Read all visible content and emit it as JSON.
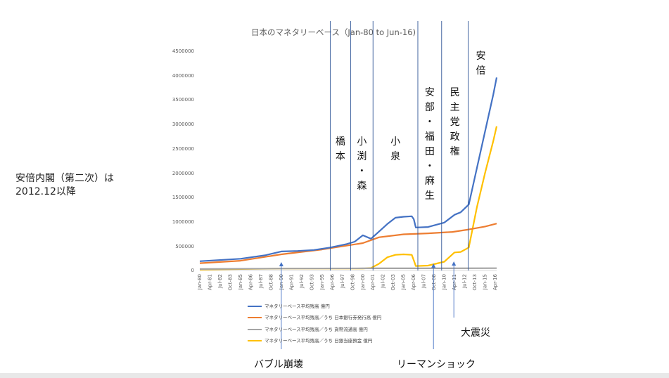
{
  "chart_data": {
    "type": "line",
    "title": "日本のマネタリーベース（Jan-80 to Jun-16)",
    "xlabel": "",
    "ylabel": "",
    "ylim": [
      0,
      4500000
    ],
    "y_ticks": [
      "0",
      "500000",
      "1000000",
      "1500000",
      "2000000",
      "2500000",
      "3000000",
      "3500000",
      "4000000",
      "4500000"
    ],
    "x_start_year": 1980,
    "x_end": [
      2016,
      6
    ],
    "x_tick_labels": [
      "Jan-80",
      "Apr-81",
      "Jul-82",
      "Oct-83",
      "Jan-85",
      "Apr-86",
      "Jul-87",
      "Oct-88",
      "Jan-90",
      "Apr-91",
      "Jul-92",
      "Oct-93",
      "Jan-95",
      "Apr-96",
      "Jul-97",
      "Oct-98",
      "Jan-00",
      "Apr-01",
      "Jul-02",
      "Oct-03",
      "Jan-05",
      "Apr-06",
      "Jul-07",
      "Oct-08",
      "Jan-10",
      "Apr-11",
      "Jul-12",
      "Oct-13",
      "Jan-15",
      "Apr-16"
    ],
    "grid": false,
    "legend_position": "bottom",
    "series": [
      {
        "name": "マネタリーベース平均残高 億円",
        "color": "#4472c4",
        "points": [
          [
            "Jan-80",
            190000
          ],
          [
            "Jan-85",
            240000
          ],
          [
            "Jan-88",
            310000
          ],
          [
            "Jan-90",
            390000
          ],
          [
            "Jan-92",
            400000
          ],
          [
            "Jan-94",
            420000
          ],
          [
            "Jan-96",
            470000
          ],
          [
            "Jan-98",
            540000
          ],
          [
            "Jan-99",
            590000
          ],
          [
            "Jan-00",
            720000
          ],
          [
            "Jan-01",
            650000
          ],
          [
            "Jan-02",
            800000
          ],
          [
            "Jan-03",
            950000
          ],
          [
            "Jan-04",
            1080000
          ],
          [
            "Jan-05",
            1100000
          ],
          [
            "Jan-06",
            1110000
          ],
          [
            "Apr-06",
            1050000
          ],
          [
            "Jul-06",
            880000
          ],
          [
            "Jan-08",
            890000
          ],
          [
            "Jan-10",
            980000
          ],
          [
            "Apr-11",
            1140000
          ],
          [
            "Jan-12",
            1190000
          ],
          [
            "Jan-13",
            1350000
          ],
          [
            "Jan-14",
            2100000
          ],
          [
            "Jan-15",
            2850000
          ],
          [
            "Jan-16",
            3600000
          ],
          [
            "Jun-16",
            3950000
          ]
        ]
      },
      {
        "name": "マネタリーベース平均残高／うち 日本銀行券発行高 億円",
        "color": "#ed7d31",
        "points": [
          [
            "Jan-80",
            150000
          ],
          [
            "Jan-85",
            200000
          ],
          [
            "Jan-90",
            330000
          ],
          [
            "Jan-95",
            430000
          ],
          [
            "Jan-00",
            560000
          ],
          [
            "Jan-02",
            680000
          ],
          [
            "Jan-05",
            740000
          ],
          [
            "Jan-08",
            760000
          ],
          [
            "Jan-11",
            790000
          ],
          [
            "Jan-13",
            840000
          ],
          [
            "Jan-15",
            900000
          ],
          [
            "Jun-16",
            960000
          ]
        ]
      },
      {
        "name": "マネタリーベース平均残高／うち 貨幣流通高 億円",
        "color": "#a5a5a5",
        "points": [
          [
            "Jan-80",
            30000
          ],
          [
            "Jan-90",
            40000
          ],
          [
            "Jan-00",
            45000
          ],
          [
            "Jan-10",
            45000
          ],
          [
            "Jun-16",
            48000
          ]
        ]
      },
      {
        "name": "マネタリーベース平均残高／うち 日銀当座預金 億円",
        "color": "#ffc000",
        "points": [
          [
            "Jan-80",
            20000
          ],
          [
            "Jan-90",
            40000
          ],
          [
            "Jan-00",
            40000
          ],
          [
            "Jan-01",
            50000
          ],
          [
            "Jan-02",
            140000
          ],
          [
            "Jan-03",
            270000
          ],
          [
            "Jan-04",
            320000
          ],
          [
            "Jan-05",
            330000
          ],
          [
            "Jan-06",
            320000
          ],
          [
            "Apr-06",
            210000
          ],
          [
            "Jul-06",
            90000
          ],
          [
            "Jan-08",
            100000
          ],
          [
            "Jan-10",
            180000
          ],
          [
            "Apr-11",
            370000
          ],
          [
            "Jan-12",
            380000
          ],
          [
            "Jan-13",
            470000
          ],
          [
            "Jan-14",
            1300000
          ],
          [
            "Jan-15",
            2000000
          ],
          [
            "Jan-16",
            2650000
          ],
          [
            "Jun-16",
            2950000
          ]
        ]
      }
    ],
    "era_lines": [
      {
        "date": "Jan-96",
        "label": "橋本"
      },
      {
        "date": "Jul-98",
        "label": "小渕・森"
      },
      {
        "date": "Apr-01",
        "label": "小泉"
      },
      {
        "date": "Oct-06",
        "label": "安部・福田・麻生"
      },
      {
        "date": "Sep-09",
        "label": "民主党政権"
      },
      {
        "date": "Dec-12",
        "label": "安倍"
      }
    ],
    "annotations": [
      {
        "text": "バブル崩壊",
        "date": "Jan-90"
      },
      {
        "text": "リーマンショック",
        "date": "Sep-08"
      },
      {
        "text": "大震災",
        "date": "Mar-11"
      }
    ]
  },
  "side_note": [
    "安倍内閣（第二次）は",
    "2012.12以降"
  ]
}
